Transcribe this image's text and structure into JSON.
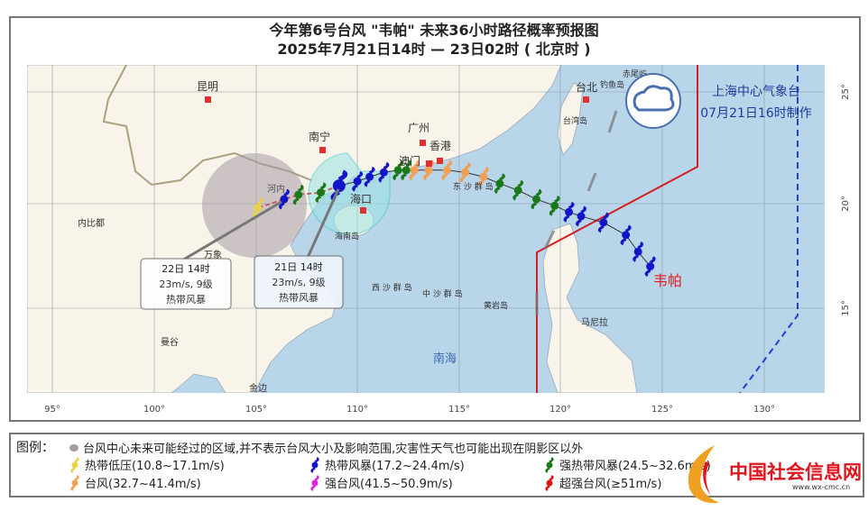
{
  "title": {
    "line1": "今年第6号台风 \"韦帕\" 未来36小时路径概率预报图",
    "line2": "2025年7月21日14时 — 23日02时 ( 北京时 )"
  },
  "issuer": {
    "name": "上海中心气象台",
    "time": "07月21日16时制作"
  },
  "typhoon_name": "韦帕",
  "axes": {
    "lon_ticks": [
      "95°",
      "100°",
      "105°",
      "110°",
      "115°",
      "120°",
      "125°",
      "130°"
    ],
    "lat_ticks": [
      "25°",
      "20°",
      "15°"
    ]
  },
  "places": {
    "kunming": "昆明",
    "nanning": "南宁",
    "guangzhou": "广州",
    "hongkong": "香港",
    "macau": "澳门",
    "haikou": "海口",
    "hainan": "海南岛",
    "hanoi": "河内",
    "naypyidaw": "内比都",
    "vientiane": "万象",
    "bangkok": "曼谷",
    "phnompenh": "金边",
    "taipei": "台北",
    "diaoyu": "钓鱼岛",
    "chiwei": "赤尾屿",
    "taiwan": "台湾岛",
    "dongsha": "东 沙 群 岛",
    "xisha": "西 沙 群 岛",
    "zhongsha": "中 沙 群 岛",
    "huangyan": "黄岩岛",
    "manila": "马尼拉",
    "nanhai": "南海"
  },
  "callouts": [
    {
      "time": "22日 14时",
      "wind": "23m/s, 9级",
      "level": "热带风暴"
    },
    {
      "time": "21日 14时",
      "wind": "23m/s, 9级",
      "level": "热带风暴"
    }
  ],
  "track": [
    {
      "lon": 124.4,
      "lat": 17.0,
      "cat": "ts"
    },
    {
      "lon": 123.8,
      "lat": 17.7,
      "cat": "ts"
    },
    {
      "lon": 123.2,
      "lat": 18.5,
      "cat": "ts"
    },
    {
      "lon": 122.1,
      "lat": 19.1,
      "cat": "ts"
    },
    {
      "lon": 121.0,
      "lat": 19.4,
      "cat": "ts"
    },
    {
      "lon": 120.4,
      "lat": 19.6,
      "cat": "ts"
    },
    {
      "lon": 119.7,
      "lat": 19.9,
      "cat": "sts"
    },
    {
      "lon": 118.8,
      "lat": 20.2,
      "cat": "sts"
    },
    {
      "lon": 117.9,
      "lat": 20.6,
      "cat": "sts"
    },
    {
      "lon": 117.0,
      "lat": 20.9,
      "cat": "sts"
    },
    {
      "lon": 116.2,
      "lat": 21.2,
      "cat": "ty"
    },
    {
      "lon": 115.3,
      "lat": 21.4,
      "cat": "ty"
    },
    {
      "lon": 114.4,
      "lat": 21.5,
      "cat": "ty"
    },
    {
      "lon": 113.5,
      "lat": 21.5,
      "cat": "ty"
    },
    {
      "lon": 112.8,
      "lat": 21.5,
      "cat": "ty"
    },
    {
      "lon": 112.4,
      "lat": 21.5,
      "cat": "sts"
    },
    {
      "lon": 112.0,
      "lat": 21.5,
      "cat": "sts"
    },
    {
      "lon": 111.3,
      "lat": 21.4,
      "cat": "ts"
    },
    {
      "lon": 110.6,
      "lat": 21.2,
      "cat": "ts"
    },
    {
      "lon": 110.0,
      "lat": 21.0,
      "cat": "ts"
    },
    {
      "lon": 109.1,
      "lat": 20.8,
      "cat": "ts",
      "current": true
    }
  ],
  "forecast": [
    {
      "lon": 108.2,
      "lat": 20.5,
      "cat": "sts"
    },
    {
      "lon": 107.1,
      "lat": 20.4,
      "cat": "sts"
    },
    {
      "lon": 106.4,
      "lat": 20.2,
      "cat": "ts"
    },
    {
      "lon": 105.1,
      "lat": 19.8,
      "cat": "td"
    }
  ],
  "colors": {
    "td": "#e8d24a",
    "ts": "#1414c8",
    "sts": "#1a7a1a",
    "ty": "#f0a050",
    "sty": "#e020e0",
    "superty": "#e01010",
    "sea": "#b9d5ea",
    "land": "#f8f4ea",
    "warning_24h": "#d02020",
    "warning_48h": "#2040d0"
  },
  "legend": {
    "label": "图例：",
    "area_note": "台风中心未来可能经过的区域,并不表示台风大小及影响范围,灾害性天气也可能出现在阴影区以外",
    "items": [
      {
        "cat": "td",
        "text": "热带低压(10.8~17.1m/s)"
      },
      {
        "cat": "ts",
        "text": "热带风暴(17.2~24.4m/s)"
      },
      {
        "cat": "sts",
        "text": "强热带风暴(24.5~32.6m/s)"
      },
      {
        "cat": "ty",
        "text": "台风(32.7~41.4m/s)"
      },
      {
        "cat": "sty",
        "text": "强台风(41.5~50.9m/s)"
      },
      {
        "cat": "superty",
        "text": "超强台风(≥51m/s)"
      }
    ]
  },
  "watermark": {
    "text": "中国社会信息网",
    "url": "www.wx-cmc.cn"
  }
}
